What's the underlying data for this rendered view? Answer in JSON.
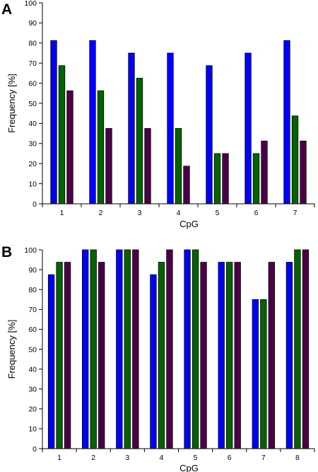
{
  "colors": {
    "series_1": "#0000ff",
    "series_2": "#006400",
    "series_3": "#4b0048",
    "axis": "#000000",
    "background": "#ffffff"
  },
  "chart_data": [
    {
      "type": "bar",
      "panel_label": "A",
      "categories": [
        "1",
        "2",
        "3",
        "4",
        "5",
        "6",
        "7"
      ],
      "series": [
        {
          "values": [
            81.25,
            81.25,
            75,
            75,
            68.75,
            75,
            81.25
          ]
        },
        {
          "values": [
            68.75,
            56.25,
            62.5,
            37.5,
            25,
            25,
            43.75
          ]
        },
        {
          "values": [
            56.25,
            37.5,
            37.5,
            18.75,
            25,
            31.25,
            31.25
          ]
        }
      ],
      "xlabel": "CpG",
      "ylabel": "Frequency [%]",
      "ylim": [
        0,
        100
      ],
      "yticks": [
        0,
        10,
        20,
        30,
        40,
        50,
        60,
        70,
        80,
        90,
        100
      ],
      "grid": false,
      "legend": "none"
    },
    {
      "type": "bar",
      "panel_label": "B",
      "categories": [
        "1",
        "2",
        "3",
        "4",
        "5",
        "6",
        "7",
        "8"
      ],
      "series": [
        {
          "values": [
            87.5,
            100,
            100,
            87.5,
            100,
            93.75,
            75,
            93.75
          ]
        },
        {
          "values": [
            93.75,
            100,
            100,
            93.75,
            100,
            93.75,
            75,
            100
          ]
        },
        {
          "values": [
            93.75,
            93.75,
            100,
            100,
            93.75,
            93.75,
            93.75,
            100
          ]
        }
      ],
      "xlabel": "CpG",
      "ylabel": "Frequency [%]",
      "ylim": [
        0,
        100
      ],
      "yticks": [
        0,
        10,
        20,
        30,
        40,
        50,
        60,
        70,
        80,
        90,
        100
      ],
      "grid": false,
      "legend": "none"
    }
  ]
}
